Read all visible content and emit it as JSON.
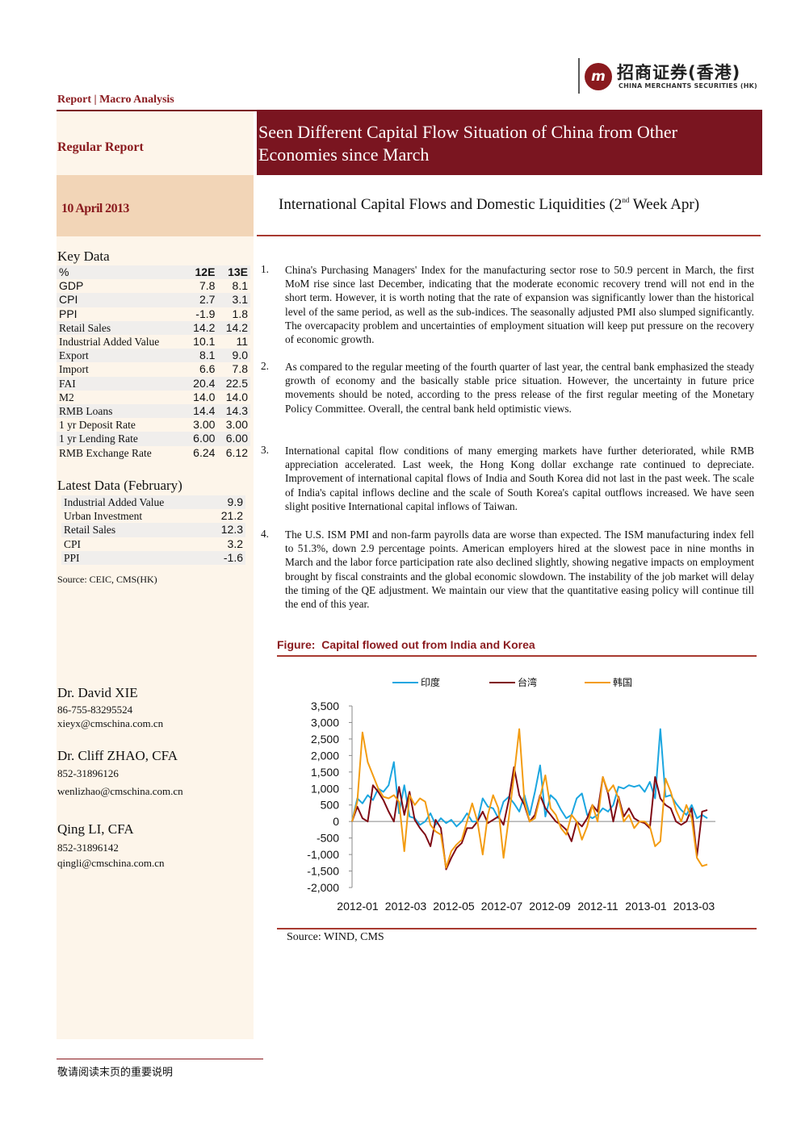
{
  "header": {
    "logo_cn": "招商证券(香港)",
    "logo_en": "CHINA MERCHANTS SECURITIES (HK)",
    "logo_mark": "m",
    "report_type": "Report | Macro Analysis"
  },
  "sidebar": {
    "regular_report": "Regular Report",
    "date": "10 April 2013",
    "key_data": {
      "title": "Key Data",
      "columns": [
        "%",
        "12E",
        "13E"
      ],
      "rows": [
        {
          "label": "GDP",
          "v12": "7.8",
          "v13": "8.1"
        },
        {
          "label": "CPI",
          "v12": "2.7",
          "v13": "3.1"
        },
        {
          "label": "PPI",
          "v12": "-1.9",
          "v13": "1.8"
        },
        {
          "label": "Retail Sales",
          "v12": "14.2",
          "v13": "14.2"
        },
        {
          "label": "Industrial Added Value",
          "v12": "10.1",
          "v13": "11"
        },
        {
          "label": "Export",
          "v12": "8.1",
          "v13": "9.0"
        },
        {
          "label": "Import",
          "v12": "6.6",
          "v13": "7.8"
        },
        {
          "label": "FAI",
          "v12": "20.4",
          "v13": "22.5"
        },
        {
          "label": "M2",
          "v12": "14.0",
          "v13": "14.0"
        },
        {
          "label": "RMB Loans",
          "v12": "14.4",
          "v13": "14.3"
        },
        {
          "label": "1 yr Deposit Rate",
          "v12": "3.00",
          "v13": "3.00"
        },
        {
          "label": "1 yr Lending Rate",
          "v12": "6.00",
          "v13": "6.00"
        },
        {
          "label": "RMB Exchange Rate",
          "v12": "6.24",
          "v13": "6.12"
        }
      ]
    },
    "latest_data": {
      "title": "Latest Data (February)",
      "rows": [
        {
          "label": "Industrial Added Value",
          "value": "9.9"
        },
        {
          "label": "Urban Investment",
          "value": "21.2"
        },
        {
          "label": "Retail Sales",
          "value": "12.3"
        },
        {
          "label": "CPI",
          "value": "3.2"
        },
        {
          "label": "PPI",
          "value": "-1.6"
        }
      ]
    },
    "source": "Source: CEIC, CMS(HK)",
    "authors": [
      {
        "name": "Dr. David XIE",
        "phone": "86-755-83295524",
        "email": "xieyx@cmschina.com.cn"
      },
      {
        "name": "Dr. Cliff ZHAO, CFA",
        "phone": "852-31896126",
        "email": "wenlizhao@cmschina.com.cn"
      },
      {
        "name": "Qing LI, CFA",
        "phone": "852-31896142",
        "email": "qingli@cmschina.com.cn"
      }
    ]
  },
  "title": "Seen Different Capital Flow Situation of China from Other Economies since March",
  "subtitle": {
    "before": "International Capital Flows and Domestic Liquidities (2",
    "sup": "nd",
    "after": " Week Apr)"
  },
  "points": [
    {
      "num": "1.",
      "text": "China's Purchasing Managers' Index for the manufacturing sector rose to 50.9 percent in March, the first MoM rise since last December, indicating that the moderate economic recovery trend will not end in the short term. However, it is worth noting that the rate of expansion was significantly lower than the historical level of the same period, as well as the sub-indices. The seasonally adjusted PMI also slumped significantly. The overcapacity problem and uncertainties of employment situation will keep put pressure on the recovery of economic growth."
    },
    {
      "num": "2.",
      "text": "As compared to the regular meeting of the fourth quarter of last year, the central bank emphasized the steady growth of economy and the basically stable price situation. However, the uncertainty in future price movements should be noted, according to the press release of the first regular meeting of the Monetary Policy Committee. Overall, the central bank held optimistic views."
    },
    {
      "num": "3.",
      "text": "International capital flow conditions of many emerging markets have further deteriorated, while RMB appreciation accelerated. Last week, the Hong Kong dollar exchange rate continued to depreciate. Improvement of international capital flows of India and South Korea did not last in the past week. The scale of India's capital inflows decline and the scale of South Korea's capital outflows increased. We have seen slight positive International capital inflows of Taiwan."
    },
    {
      "num": "4.",
      "text": "The U.S. ISM PMI and non-farm payrolls data are worse than expected. The ISM manufacturing index fell to 51.3%, down 2.9 percentage points. American employers hired at the slowest pace in nine months in March and the labor force participation rate also declined slightly, showing negative impacts on employment brought by fiscal constraints and the global economic slowdown. The instability of the job market will delay the timing of the QE adjustment. We maintain our view that the quantitative easing policy will continue till the end of this year."
    }
  ],
  "figure": {
    "label": "Figure:",
    "title": "Capital flowed out from India and Korea",
    "source": "Source:    WIND, CMS"
  },
  "chart_data": {
    "type": "line",
    "title": "",
    "xlabel": "",
    "ylabel": "",
    "x_tick_labels": [
      "2012-01",
      "2012-03",
      "2012-05",
      "2012-07",
      "2012-09",
      "2012-11",
      "2013-01",
      "2013-03"
    ],
    "y_ticks": [
      "3,500",
      "3,000",
      "2,500",
      "2,000",
      "1,500",
      "1,000",
      "500",
      "0",
      "-500",
      "-1,000",
      "-1,500",
      "-2,000"
    ],
    "ylim": [
      -2000,
      3500
    ],
    "legend_position": "top",
    "grid": false,
    "series": [
      {
        "name": "印度",
        "color": "#1ba6e0",
        "values": [
          0,
          700,
          550,
          800,
          650,
          1000,
          900,
          1100,
          1800,
          250,
          1100,
          150,
          100,
          -100,
          0,
          250,
          -100,
          100,
          -50,
          50,
          -150,
          0,
          250,
          0,
          0,
          700,
          450,
          400,
          100,
          600,
          750,
          550,
          300,
          800,
          200,
          900,
          1700,
          150,
          800,
          650,
          350,
          100,
          200,
          700,
          850,
          200,
          100,
          200,
          400,
          300,
          500,
          1050,
          1000,
          1100,
          1050,
          1100,
          900,
          1200,
          700,
          2800,
          750,
          800,
          550,
          350,
          200,
          500,
          100,
          200,
          100
        ]
      },
      {
        "name": "台湾",
        "color": "#7f0a14",
        "values": [
          0,
          450,
          100,
          0,
          1100,
          900,
          650,
          300,
          0,
          1050,
          200,
          900,
          50,
          -200,
          -400,
          -750,
          50,
          -200,
          -1450,
          -1100,
          -800,
          -650,
          -200,
          -200,
          0,
          300,
          -50,
          50,
          150,
          -100,
          650,
          1650,
          800,
          500,
          0,
          200,
          800,
          400,
          200,
          0,
          -100,
          -250,
          -600,
          0,
          -150,
          100,
          500,
          300,
          1350,
          850,
          0,
          750,
          150,
          400,
          100,
          0,
          -50,
          -200,
          1350,
          700,
          500,
          400,
          0,
          -100,
          0,
          400,
          -1050,
          300,
          350
        ]
      },
      {
        "name": "韩国",
        "color": "#f39c12",
        "values": [
          0,
          600,
          2700,
          1800,
          1400,
          1000,
          750,
          700,
          800,
          600,
          -900,
          800,
          500,
          700,
          600,
          -100,
          -300,
          -400,
          -1400,
          -900,
          -700,
          -550,
          0,
          550,
          0,
          -1000,
          200,
          800,
          400,
          -1100,
          100,
          1400,
          2800,
          600,
          0,
          100,
          750,
          1400,
          400,
          200,
          -200,
          -400,
          200,
          0,
          -550,
          -150,
          500,
          0,
          1350,
          900,
          1100,
          700,
          0,
          200,
          -200,
          0,
          0,
          -150,
          -750,
          -600,
          1300,
          900,
          350,
          0,
          500,
          100,
          -1100,
          -1350,
          -1300
        ]
      }
    ]
  },
  "footer": {
    "disclaimer": "敬请阅读末页的重要说明"
  }
}
